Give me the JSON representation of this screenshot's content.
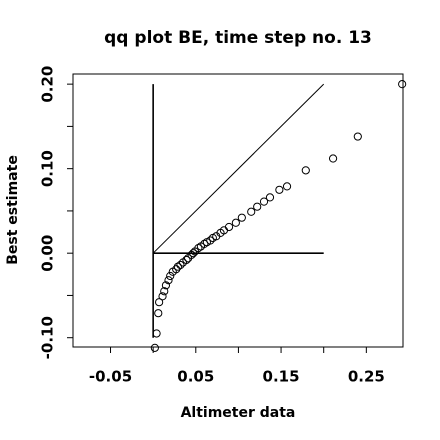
{
  "chart_data": {
    "type": "scatter",
    "title": "qq plot BE, time step no. 13",
    "x_label": "Altimeter data",
    "y_label": "Best estimate",
    "xlim": [
      -0.094,
      0.293
    ],
    "ylim": [
      -0.111,
      0.212
    ],
    "xticks": [
      -0.05,
      0.05,
      0.15,
      0.25
    ],
    "xticks_minor": [
      0,
      0.1,
      0.2
    ],
    "yticks": [
      {
        "value": -0.1,
        "label": "-0.10"
      },
      {
        "value": 0,
        "label": "0.00"
      },
      {
        "value": 0.1,
        "label": "0.10"
      },
      {
        "value": 0.2,
        "label": "0.20"
      }
    ],
    "yticks_minor": [
      -0.05,
      0.05,
      0.15
    ],
    "color": "#000000",
    "x": [
      0.002,
      0.004,
      0.006,
      0.007,
      0.011,
      0.013,
      0.015,
      0.018,
      0.02,
      0.023,
      0.027,
      0.029,
      0.032,
      0.035,
      0.039,
      0.041,
      0.045,
      0.047,
      0.049,
      0.053,
      0.056,
      0.06,
      0.063,
      0.067,
      0.07,
      0.074,
      0.079,
      0.083,
      0.089,
      0.097,
      0.104,
      0.115,
      0.122,
      0.13,
      0.137,
      0.148,
      0.157,
      0.179,
      0.211,
      0.24,
      0.292
    ],
    "values": [
      -0.112,
      -0.095,
      -0.071,
      -0.058,
      -0.051,
      -0.045,
      -0.038,
      -0.032,
      -0.027,
      -0.022,
      -0.019,
      -0.016,
      -0.014,
      -0.011,
      -0.008,
      -0.006,
      -0.002,
      0.0,
      0.002,
      0.006,
      0.008,
      0.011,
      0.013,
      0.015,
      0.018,
      0.02,
      0.024,
      0.027,
      0.031,
      0.036,
      0.042,
      0.049,
      0.055,
      0.061,
      0.066,
      0.075,
      0.079,
      0.098,
      0.112,
      0.138,
      0.2
    ],
    "lines": [
      {
        "x": [
          0,
          0
        ],
        "y": [
          -0.1,
          0.2
        ]
      },
      {
        "x": [
          0,
          0.2
        ],
        "y": [
          0,
          0
        ]
      },
      {
        "x": [
          0,
          0.2
        ],
        "y": [
          0,
          0.2
        ]
      }
    ]
  }
}
